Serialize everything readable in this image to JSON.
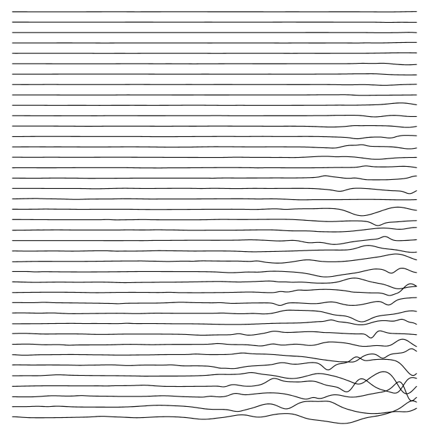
{
  "artwork": {
    "line_count": 40,
    "stroke_color": "#000000",
    "background_color": "#ffffff"
  }
}
